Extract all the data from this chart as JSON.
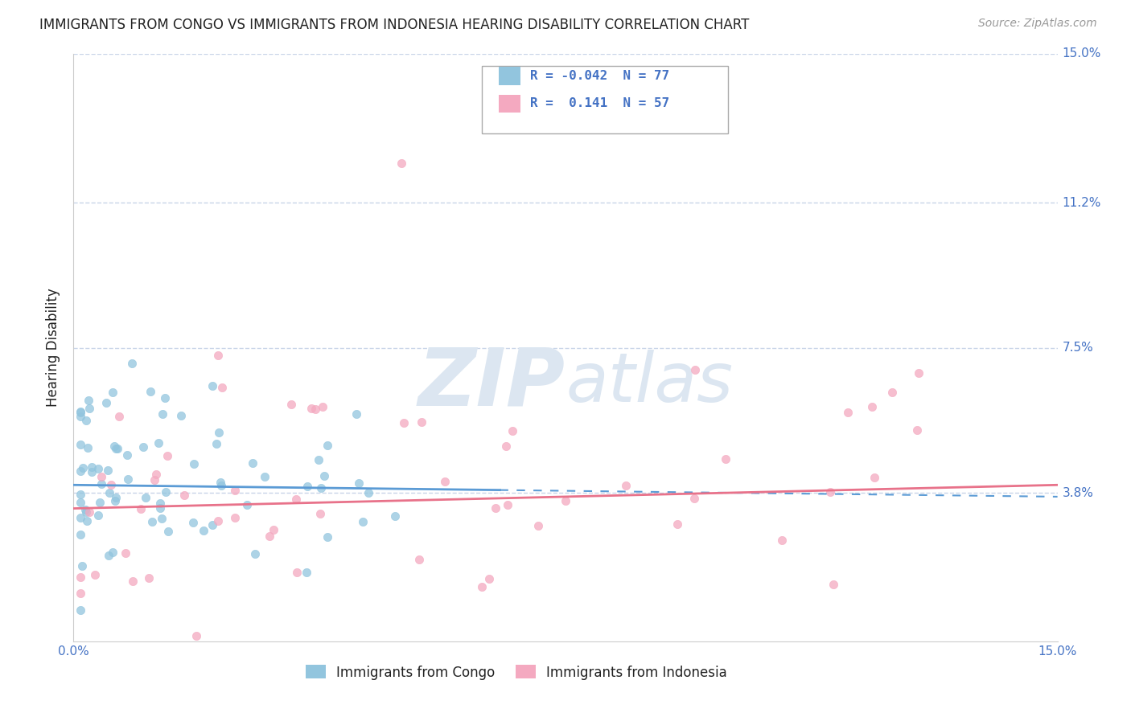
{
  "title": "IMMIGRANTS FROM CONGO VS IMMIGRANTS FROM INDONESIA HEARING DISABILITY CORRELATION CHART",
  "source": "Source: ZipAtlas.com",
  "ylabel": "Hearing Disability",
  "xmin": 0.0,
  "xmax": 0.15,
  "ymin": 0.0,
  "ymax": 0.15,
  "ytick_vals": [
    0.038,
    0.075,
    0.112,
    0.15
  ],
  "ytick_labels": [
    "3.8%",
    "7.5%",
    "11.2%",
    "15.0%"
  ],
  "legend_entry1_r": "-0.042",
  "legend_entry1_n": "77",
  "legend_entry2_r": "0.141",
  "legend_entry2_n": "57",
  "legend_label1": "Immigrants from Congo",
  "legend_label2": "Immigrants from Indonesia",
  "color_congo": "#92c5de",
  "color_indonesia": "#f4a9c0",
  "trendline_color_congo": "#5b9bd5",
  "trendline_color_indonesia": "#e8728a",
  "watermark_zip": "ZIP",
  "watermark_atlas": "atlas",
  "N_congo": 77,
  "N_indonesia": 57,
  "bg_color": "#ffffff",
  "grid_color": "#c8d4e8",
  "axis_color": "#4472c4",
  "text_color": "#222222",
  "source_color": "#999999",
  "right_label_color": "#4472c4"
}
